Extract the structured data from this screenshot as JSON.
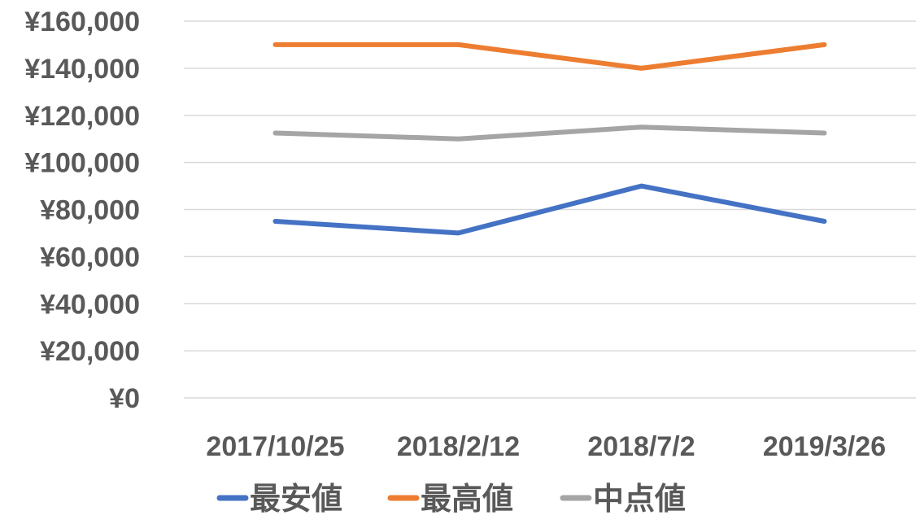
{
  "chart_data": {
    "type": "line",
    "categories": [
      "2017/10/25",
      "2018/2/12",
      "2018/7/2",
      "2019/3/26"
    ],
    "series": [
      {
        "name": "最安値",
        "color": "#4472c4",
        "values": [
          75000,
          70000,
          90000,
          75000
        ]
      },
      {
        "name": "最高値",
        "color": "#ed7d31",
        "values": [
          150000,
          150000,
          140000,
          150000
        ]
      },
      {
        "name": "中点値",
        "color": "#a5a5a5",
        "values": [
          112500,
          110000,
          115000,
          112500
        ]
      }
    ],
    "yticks": [
      "¥0",
      "¥20,000",
      "¥40,000",
      "¥60,000",
      "¥80,000",
      "¥100,000",
      "¥120,000",
      "¥140,000",
      "¥160,000"
    ],
    "ylim": [
      0,
      160000
    ],
    "grid": true,
    "legend_position": "bottom"
  }
}
